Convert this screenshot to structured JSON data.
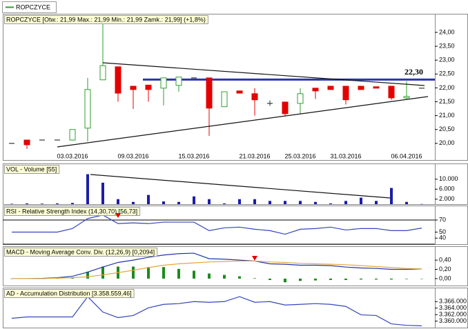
{
  "tab_label": "ROPCZYCE",
  "chart_data": [
    {
      "type": "candlestick",
      "title": "ROPCZYCE [Otw.: 21,99 Max.: 21,99 Min.: 21,99 Zamk.: 21,99] (+1,8%)",
      "categories": [
        null,
        null,
        null,
        null,
        "03.03.2016",
        null,
        null,
        null,
        "09.03.2016",
        null,
        null,
        null,
        "15.03.2016",
        null,
        null,
        null,
        "21.03.2016",
        null,
        null,
        "25.03.2016",
        null,
        null,
        "31.03.2016",
        null,
        null,
        null,
        "06.04.2016",
        null
      ],
      "open": [
        20.0,
        20.12,
        20.12,
        20.12,
        20.12,
        20.55,
        22.29,
        22.76,
        22.06,
        22.1,
        21.99,
        22.09,
        22.36,
        22.36,
        21.32,
        21.89,
        21.79,
        21.44,
        21.49,
        21.44,
        21.99,
        22.06,
        22.06,
        22.06,
        22.04,
        22.06,
        21.64,
        21.99
      ],
      "high": [
        20.0,
        20.12,
        20.12,
        20.12,
        20.5,
        22.36,
        24.35,
        22.76,
        22.06,
        22.1,
        22.36,
        22.39,
        22.36,
        22.36,
        21.86,
        21.89,
        21.99,
        21.55,
        21.49,
        21.99,
        21.99,
        22.06,
        22.06,
        22.06,
        22.04,
        22.06,
        22.24,
        21.99
      ],
      "low": [
        20.0,
        19.8,
        20.12,
        20.12,
        20.12,
        20.07,
        22.29,
        21.5,
        21.24,
        21.5,
        21.37,
        21.86,
        22.36,
        20.27,
        21.32,
        21.81,
        21.0,
        21.35,
        21.0,
        21.07,
        21.6,
        21.94,
        21.4,
        21.94,
        21.99,
        21.57,
        21.6,
        21.99
      ],
      "close": [
        20.0,
        19.95,
        20.12,
        20.12,
        20.5,
        21.94,
        22.8,
        21.81,
        21.94,
        21.94,
        22.36,
        22.39,
        22.36,
        21.27,
        21.86,
        21.81,
        21.57,
        21.44,
        21.07,
        21.79,
        21.89,
        21.94,
        21.57,
        21.94,
        21.99,
        21.64,
        21.69,
        21.99
      ],
      "up_color": "#2e9e2e",
      "down_color": "#e30000",
      "flat_color": "#333333",
      "level": {
        "value": 22.3,
        "label": "22,30",
        "color": "#2b36a8"
      },
      "ylim": [
        19.4,
        24.67
      ],
      "yticks": [
        {
          "value": 20,
          "label": "20,00"
        },
        {
          "value": 20.5,
          "label": "20,50"
        },
        {
          "value": 21,
          "label": "21,00"
        },
        {
          "value": 21.5,
          "label": "21,50"
        },
        {
          "value": 22,
          "label": "22,00"
        },
        {
          "value": 22.5,
          "label": "22,50"
        },
        {
          "value": 23,
          "label": "23,00"
        },
        {
          "value": 23.5,
          "label": "23,50"
        },
        {
          "value": 24,
          "label": "24,00"
        }
      ]
    },
    {
      "type": "bar",
      "title": "VOL - Volume [55]",
      "series": [
        {
          "color": "#1c1ca8",
          "values": [
            150,
            300,
            200,
            300,
            500,
            12000,
            8600,
            2000,
            900,
            3700,
            1100,
            900,
            3100,
            2000,
            300,
            2000,
            2000,
            1300,
            1300,
            1300,
            900,
            300,
            1300,
            2600,
            1300,
            6500,
            900,
            55
          ]
        }
      ],
      "ylim": [
        0,
        16300
      ],
      "yticks": [
        {
          "value": 2000,
          "label": "2.000"
        },
        {
          "value": 6000,
          "label": "6.000"
        },
        {
          "value": 10000,
          "label": "10.000"
        }
      ]
    },
    {
      "type": "line",
      "title": "RSI - Relative Strength Index (14,30,70) [56,73]",
      "series": [
        {
          "color": "#3344bb",
          "values": [
            50,
            50,
            50,
            50,
            55.9,
            72.4,
            78.2,
            64.1,
            65.3,
            64.1,
            66.5,
            66.5,
            66.5,
            52.4,
            57.1,
            58.2,
            54.7,
            52.4,
            46.5,
            54.7,
            55.9,
            58.2,
            53.5,
            55.9,
            55.9,
            52.4,
            52.4,
            56.73
          ]
        }
      ],
      "levels": [
        70,
        30
      ],
      "ylim": [
        30,
        94
      ],
      "yticks": [
        40,
        50,
        70
      ]
    },
    {
      "type": "combo",
      "title": "MACD - Moving Average Conv. Div. (12,26,9) [0,2094]",
      "series": [
        {
          "type": "bar",
          "color": "#1e8a1e",
          "values": [
            0,
            0,
            0,
            0.005,
            0.02,
            0.15,
            0.26,
            0.26,
            0.26,
            0.25,
            0.25,
            0.21,
            0.17,
            0.11,
            0.08,
            0.05,
            0.01,
            -0.03,
            -0.08,
            -0.05,
            -0.04,
            -0.03,
            -0.03,
            -0.02,
            -0.02,
            -0.02,
            -0.01,
            0
          ]
        },
        {
          "type": "line",
          "color": "#2233aa",
          "values": [
            0,
            0,
            0.005,
            0.02,
            0.05,
            0.14,
            0.25,
            0.35,
            0.4,
            0.46,
            0.51,
            0.54,
            0.55,
            0.43,
            0.42,
            0.4,
            0.38,
            0.32,
            0.31,
            0.29,
            0.29,
            0.28,
            0.25,
            0.23,
            0.22,
            0.2,
            0.2,
            0.2094
          ]
        },
        {
          "type": "line",
          "color": "#e0a83a",
          "values": [
            0,
            0,
            0,
            0.01,
            0.02,
            0.04,
            0.08,
            0.13,
            0.18,
            0.24,
            0.29,
            0.32,
            0.34,
            0.36,
            0.37,
            0.38,
            0.38,
            0.36,
            0.35,
            0.33,
            0.32,
            0.31,
            0.3,
            0.28,
            0.26,
            0.24,
            0.22,
            0.21
          ]
        }
      ],
      "ylim": [
        -0.15,
        0.7
      ],
      "yticks": [
        {
          "value": 0,
          "label": "0,00"
        },
        {
          "value": 0.2,
          "label": "0,20"
        },
        {
          "value": 0.4,
          "label": "0,40"
        }
      ]
    },
    {
      "type": "line",
      "title": "AD - Accumulation Distribution [3.358.559,46]",
      "series": [
        {
          "color": "#3344bb",
          "values": [
            3360860,
            3361290,
            3361290,
            3361290,
            3361290,
            3367520,
            3362790,
            3361080,
            3361720,
            3364090,
            3365160,
            3365380,
            3366000,
            3365800,
            3366000,
            3367520,
            3365800,
            3366000,
            3364950,
            3365160,
            3365380,
            3365160,
            3364520,
            3361940,
            3361720,
            3359150,
            3358700,
            3358559.46
          ]
        }
      ],
      "ylim": [
        3358000,
        3370300
      ],
      "yticks": [
        {
          "value": 3360000,
          "label": "3.360.000"
        },
        {
          "value": 3362000,
          "label": "3.362.000"
        },
        {
          "value": 3364000,
          "label": "3.364.000"
        },
        {
          "value": 3366000,
          "label": "3.366.000"
        }
      ]
    }
  ]
}
